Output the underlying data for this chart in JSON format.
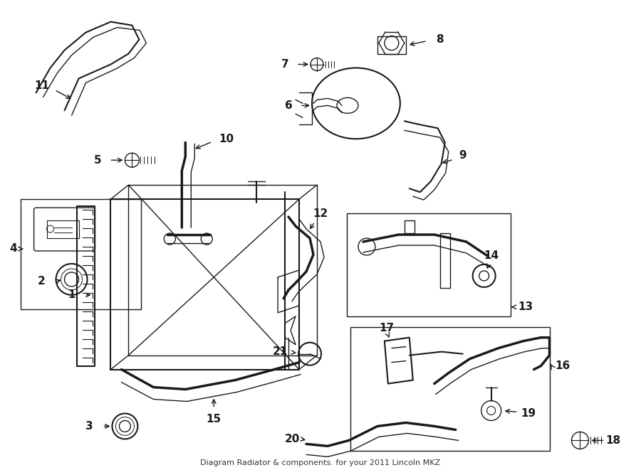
{
  "title": "Diagram Radiator & components. for your 2011 Lincoln MKZ",
  "bg": "#ffffff",
  "lc": "#1a1a1a",
  "fig_w": 9.0,
  "fig_h": 6.61,
  "dpi": 100
}
